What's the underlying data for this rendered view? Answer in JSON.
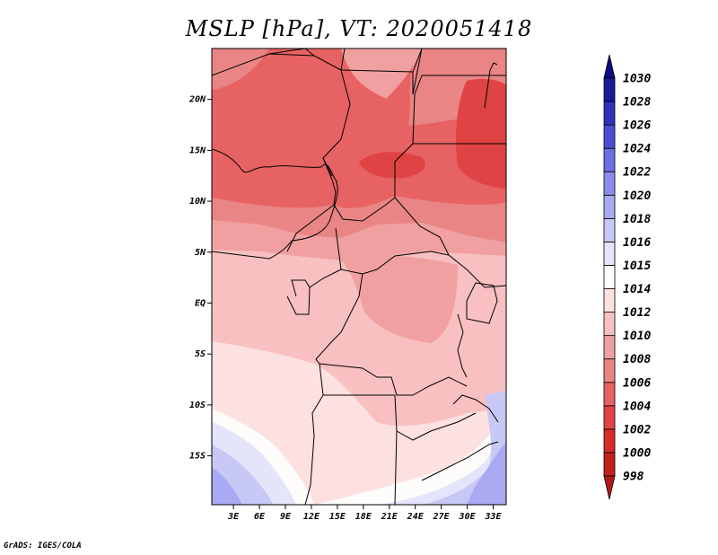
{
  "chart_data": {
    "type": "heatmap",
    "title": "MSLP [hPa], VT: 2020051418",
    "variable": "MSLP",
    "units": "hPa",
    "valid_time": "2020051418",
    "x_ticks": [
      "3E",
      "6E",
      "9E",
      "12E",
      "15E",
      "18E",
      "21E",
      "24E",
      "27E",
      "30E",
      "33E"
    ],
    "x_tick_values": [
      3,
      6,
      9,
      12,
      15,
      18,
      21,
      24,
      27,
      30,
      33
    ],
    "y_ticks": [
      "20N",
      "15N",
      "10N",
      "5N",
      "EQ",
      "5S",
      "10S",
      "15S"
    ],
    "y_tick_values": [
      20,
      15,
      10,
      5,
      0,
      -5,
      -10,
      -15
    ],
    "xlim": [
      0.5,
      34.5
    ],
    "ylim": [
      -19.8,
      25.0
    ],
    "colorbar": {
      "levels": [
        998,
        1000,
        1002,
        1004,
        1006,
        1008,
        1010,
        1012,
        1014,
        1015,
        1016,
        1018,
        1020,
        1022,
        1024,
        1026,
        1028,
        1030
      ],
      "labels": [
        "1030",
        "1028",
        "1026",
        "1024",
        "1022",
        "1020",
        "1018",
        "1016",
        "1015",
        "1014",
        "1012",
        "1010",
        "1008",
        "1006",
        "1004",
        "1002",
        "1000",
        "998"
      ],
      "colors": [
        "#b41919",
        "#c42020",
        "#d52c2c",
        "#e04343",
        "#e76262",
        "#e98585",
        "#f0a0a0",
        "#f8c0c0",
        "#fde0e0",
        "#fefbfb",
        "#e4e4fb",
        "#c8c8f7",
        "#aaaaf3",
        "#8c8cec",
        "#6e6ee4",
        "#4c4cd4",
        "#3030bc",
        "#1a1a9a",
        "#0c0c84"
      ]
    }
  },
  "credit": "GrADS: IGES/COLA"
}
